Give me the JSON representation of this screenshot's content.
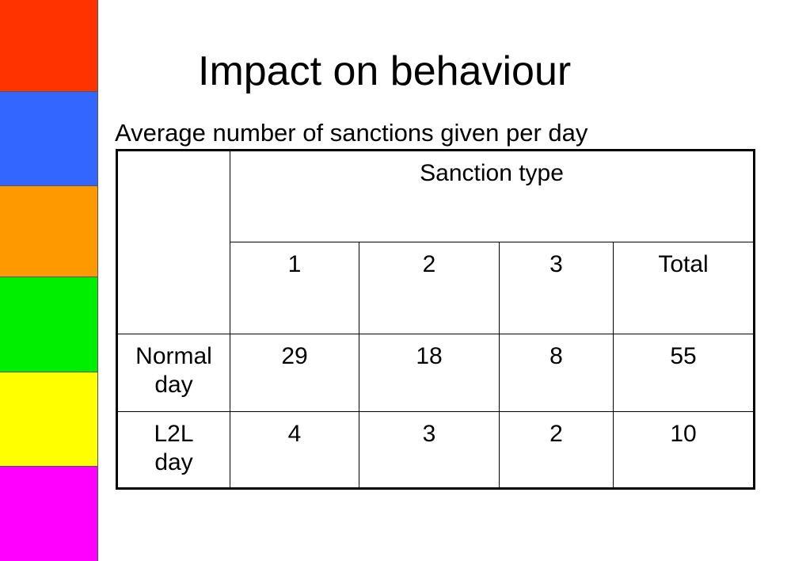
{
  "slide": {
    "title": "Impact on behaviour",
    "subtitle": "Average number of sanctions given per day"
  },
  "color_bar": {
    "colors": [
      "#ff3300",
      "#3366ff",
      "#ff9900",
      "#00ee00",
      "#ffff00",
      "#ff00ff"
    ]
  },
  "table": {
    "group_header": "Sanction type",
    "columns": [
      "1",
      "2",
      "3",
      "Total"
    ],
    "rows": [
      {
        "label": "Normal day",
        "values": [
          "29",
          "18",
          "8",
          "55"
        ]
      },
      {
        "label": "L2L day",
        "values": [
          "4",
          "3",
          "2",
          "10"
        ]
      }
    ]
  }
}
